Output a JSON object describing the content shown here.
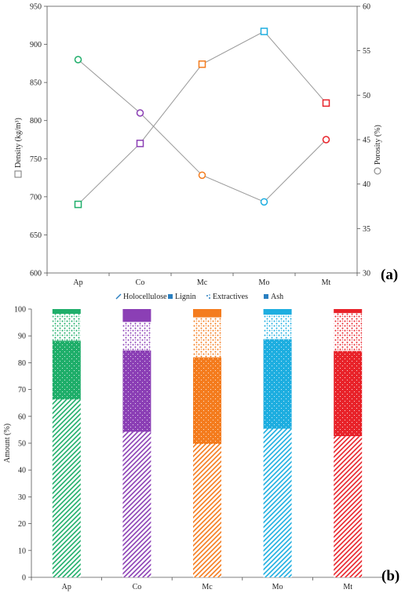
{
  "chart_data": [
    {
      "type": "line",
      "panel_label": "(a)",
      "categories": [
        "Ap",
        "Co",
        "Mc",
        "Mo",
        "Mt"
      ],
      "ylabel": "Density (kg/m³)",
      "ylabel_right": "Porosity (%)",
      "ylim": [
        600,
        950
      ],
      "yticks": [
        "600",
        "650",
        "700",
        "750",
        "800",
        "850",
        "900",
        "950"
      ],
      "ylim_right": [
        30,
        60
      ],
      "yticks_right": [
        "30",
        "35",
        "40",
        "45",
        "50",
        "55",
        "60"
      ],
      "grid": false,
      "series": [
        {
          "marker": "square",
          "axis": "left",
          "values": [
            690,
            770,
            874,
            917,
            823
          ]
        },
        {
          "marker": "circle",
          "axis": "right",
          "values": [
            54,
            48,
            41,
            38,
            45
          ]
        }
      ],
      "category_colors": [
        "#1fae6a",
        "#8b3fb5",
        "#f47c1e",
        "#1eaee0",
        "#e8232a"
      ],
      "line_color": "#999999"
    },
    {
      "type": "bar",
      "stacked": true,
      "panel_label": "(b)",
      "categories": [
        "Ap",
        "Co",
        "Mc",
        "Mo",
        "Mt"
      ],
      "ylabel": "Amount (%)",
      "ylim": [
        0,
        100
      ],
      "yticks": [
        "0",
        "10",
        "20",
        "30",
        "40",
        "50",
        "60",
        "70",
        "80",
        "90",
        "100"
      ],
      "legend_position": "top",
      "series": [
        {
          "name": "Holocellulose",
          "pattern": "diagonal-hatch",
          "values": [
            66.3,
            54.2,
            49.7,
            55.4,
            52.6
          ]
        },
        {
          "name": "Lignin",
          "pattern": "solid-dots",
          "values": [
            21.9,
            30.4,
            32.3,
            33.4,
            31.8
          ]
        },
        {
          "name": "Extractives",
          "pattern": "light-dots",
          "values": [
            10.0,
            10.6,
            14.9,
            9.1,
            14.1
          ]
        },
        {
          "name": "Ash",
          "pattern": "solid",
          "values": [
            1.8,
            4.8,
            3.1,
            2.1,
            1.5
          ]
        }
      ],
      "category_colors": [
        "#1fae6a",
        "#8b3fb5",
        "#f47c1e",
        "#1eaee0",
        "#e8232a"
      ]
    }
  ]
}
